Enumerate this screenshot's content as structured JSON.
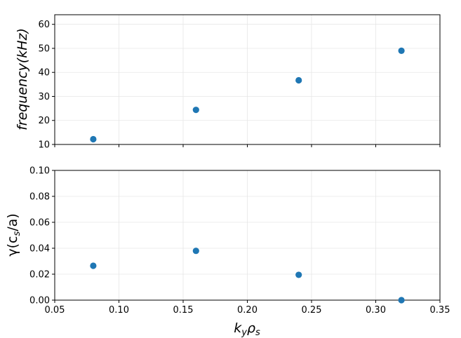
{
  "chart_data": [
    {
      "type": "scatter",
      "title": "",
      "xlabel": "",
      "ylabel": "frequency(kHz)",
      "x": [
        0.08,
        0.16,
        0.24,
        0.32
      ],
      "y": [
        12.2,
        24.4,
        36.7,
        49.0
      ],
      "xlim": [
        0.05,
        0.35
      ],
      "ylim": [
        10,
        64
      ],
      "yticks": [
        10,
        20,
        30,
        40,
        50,
        60
      ],
      "ytick_labels": [
        "10",
        "20",
        "30",
        "40",
        "50",
        "60"
      ],
      "show_xtick_labels": false,
      "grid": true,
      "marker_color": "#1f77b4"
    },
    {
      "type": "scatter",
      "title": "",
      "xlabel": "k_y ρ_s",
      "ylabel": "γ(c_s/a)",
      "x": [
        0.08,
        0.16,
        0.24,
        0.32
      ],
      "y": [
        0.0265,
        0.038,
        0.0195,
        0.0
      ],
      "xlim": [
        0.05,
        0.35
      ],
      "ylim": [
        0.0,
        0.1
      ],
      "xticks": [
        0.05,
        0.1,
        0.15,
        0.2,
        0.25,
        0.3,
        0.35
      ],
      "xtick_labels": [
        "0.05",
        "0.10",
        "0.15",
        "0.20",
        "0.25",
        "0.30",
        "0.35"
      ],
      "yticks": [
        0.0,
        0.02,
        0.04,
        0.06,
        0.08,
        0.1
      ],
      "ytick_labels": [
        "0.00",
        "0.02",
        "0.04",
        "0.06",
        "0.08",
        "0.10"
      ],
      "show_xtick_labels": true,
      "grid": true,
      "marker_color": "#1f77b4"
    }
  ],
  "labels": {
    "top_ylabel": "frequency(kHz)",
    "bottom_ylabel_gamma": "γ(c",
    "bottom_ylabel_sub": "s",
    "bottom_ylabel_tail": "/a)",
    "xlabel_k": "k",
    "xlabel_y": "y",
    "xlabel_rho": "ρ",
    "xlabel_s": "s"
  }
}
